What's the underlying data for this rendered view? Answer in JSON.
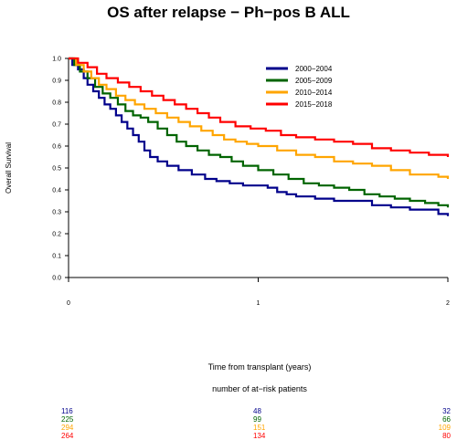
{
  "chart_data": {
    "type": "line",
    "title": "OS after relapse − Ph−pos B ALL",
    "xlabel": "Time from transplant (years)",
    "ylabel": "Overall Survival",
    "xlim": [
      0,
      2
    ],
    "ylim": [
      0,
      1
    ],
    "x_ticks": [
      "0",
      "1",
      "2"
    ],
    "y_ticks": [
      "0.0",
      "0.1",
      "0.2",
      "0.3",
      "0.4",
      "0.5",
      "0.6",
      "0.7",
      "0.8",
      "0.9",
      "1.0"
    ],
    "legend_position": "top-right",
    "series": [
      {
        "name": "2000−2004",
        "color": "#00008B",
        "points": [
          [
            0,
            1.0
          ],
          [
            0.02,
            0.97
          ],
          [
            0.05,
            0.95
          ],
          [
            0.08,
            0.91
          ],
          [
            0.1,
            0.88
          ],
          [
            0.13,
            0.85
          ],
          [
            0.16,
            0.82
          ],
          [
            0.19,
            0.79
          ],
          [
            0.22,
            0.77
          ],
          [
            0.25,
            0.74
          ],
          [
            0.28,
            0.71
          ],
          [
            0.31,
            0.68
          ],
          [
            0.34,
            0.65
          ],
          [
            0.37,
            0.62
          ],
          [
            0.4,
            0.58
          ],
          [
            0.43,
            0.55
          ],
          [
            0.47,
            0.53
          ],
          [
            0.52,
            0.51
          ],
          [
            0.58,
            0.49
          ],
          [
            0.65,
            0.47
          ],
          [
            0.72,
            0.45
          ],
          [
            0.78,
            0.44
          ],
          [
            0.85,
            0.43
          ],
          [
            0.92,
            0.42
          ],
          [
            1.0,
            0.42
          ],
          [
            1.05,
            0.41
          ],
          [
            1.1,
            0.39
          ],
          [
            1.15,
            0.38
          ],
          [
            1.2,
            0.37
          ],
          [
            1.3,
            0.36
          ],
          [
            1.4,
            0.35
          ],
          [
            1.5,
            0.35
          ],
          [
            1.6,
            0.33
          ],
          [
            1.7,
            0.32
          ],
          [
            1.8,
            0.31
          ],
          [
            1.9,
            0.31
          ],
          [
            1.95,
            0.29
          ],
          [
            2.0,
            0.28
          ]
        ]
      },
      {
        "name": "2005−2009",
        "color": "#006400",
        "points": [
          [
            0,
            1.0
          ],
          [
            0.03,
            0.97
          ],
          [
            0.06,
            0.94
          ],
          [
            0.1,
            0.91
          ],
          [
            0.14,
            0.87
          ],
          [
            0.18,
            0.84
          ],
          [
            0.22,
            0.82
          ],
          [
            0.26,
            0.79
          ],
          [
            0.3,
            0.76
          ],
          [
            0.34,
            0.74
          ],
          [
            0.38,
            0.73
          ],
          [
            0.42,
            0.71
          ],
          [
            0.47,
            0.68
          ],
          [
            0.52,
            0.65
          ],
          [
            0.57,
            0.62
          ],
          [
            0.62,
            0.6
          ],
          [
            0.68,
            0.58
          ],
          [
            0.74,
            0.56
          ],
          [
            0.8,
            0.55
          ],
          [
            0.86,
            0.53
          ],
          [
            0.92,
            0.51
          ],
          [
            1.0,
            0.49
          ],
          [
            1.08,
            0.47
          ],
          [
            1.16,
            0.45
          ],
          [
            1.24,
            0.43
          ],
          [
            1.32,
            0.42
          ],
          [
            1.4,
            0.41
          ],
          [
            1.48,
            0.4
          ],
          [
            1.56,
            0.38
          ],
          [
            1.64,
            0.37
          ],
          [
            1.72,
            0.36
          ],
          [
            1.8,
            0.35
          ],
          [
            1.88,
            0.34
          ],
          [
            1.95,
            0.33
          ],
          [
            2.0,
            0.32
          ]
        ]
      },
      {
        "name": "2010−2014",
        "color": "#FFA500",
        "points": [
          [
            0,
            1.0
          ],
          [
            0.04,
            0.97
          ],
          [
            0.08,
            0.94
          ],
          [
            0.12,
            0.91
          ],
          [
            0.16,
            0.88
          ],
          [
            0.2,
            0.86
          ],
          [
            0.25,
            0.83
          ],
          [
            0.3,
            0.81
          ],
          [
            0.35,
            0.79
          ],
          [
            0.4,
            0.77
          ],
          [
            0.46,
            0.75
          ],
          [
            0.52,
            0.73
          ],
          [
            0.58,
            0.71
          ],
          [
            0.64,
            0.69
          ],
          [
            0.7,
            0.67
          ],
          [
            0.76,
            0.65
          ],
          [
            0.82,
            0.63
          ],
          [
            0.88,
            0.62
          ],
          [
            0.94,
            0.61
          ],
          [
            1.0,
            0.6
          ],
          [
            1.1,
            0.58
          ],
          [
            1.2,
            0.56
          ],
          [
            1.3,
            0.55
          ],
          [
            1.4,
            0.53
          ],
          [
            1.5,
            0.52
          ],
          [
            1.6,
            0.51
          ],
          [
            1.7,
            0.49
          ],
          [
            1.8,
            0.47
          ],
          [
            1.9,
            0.47
          ],
          [
            1.95,
            0.46
          ],
          [
            2.0,
            0.45
          ]
        ]
      },
      {
        "name": "2015−2018",
        "color": "#FF0000",
        "points": [
          [
            0,
            1.0
          ],
          [
            0.05,
            0.98
          ],
          [
            0.1,
            0.96
          ],
          [
            0.15,
            0.93
          ],
          [
            0.2,
            0.91
          ],
          [
            0.26,
            0.89
          ],
          [
            0.32,
            0.87
          ],
          [
            0.38,
            0.85
          ],
          [
            0.44,
            0.83
          ],
          [
            0.5,
            0.81
          ],
          [
            0.56,
            0.79
          ],
          [
            0.62,
            0.77
          ],
          [
            0.68,
            0.75
          ],
          [
            0.74,
            0.73
          ],
          [
            0.8,
            0.71
          ],
          [
            0.88,
            0.69
          ],
          [
            0.96,
            0.68
          ],
          [
            1.04,
            0.67
          ],
          [
            1.12,
            0.65
          ],
          [
            1.2,
            0.64
          ],
          [
            1.3,
            0.63
          ],
          [
            1.4,
            0.62
          ],
          [
            1.5,
            0.61
          ],
          [
            1.6,
            0.59
          ],
          [
            1.7,
            0.58
          ],
          [
            1.8,
            0.57
          ],
          [
            1.9,
            0.56
          ],
          [
            1.96,
            0.56
          ],
          [
            2.0,
            0.55
          ]
        ]
      }
    ]
  },
  "at_risk": {
    "title": "number of at−risk patients",
    "rows": [
      {
        "color": "#00008B",
        "values": [
          "116",
          "48",
          "32"
        ]
      },
      {
        "color": "#006400",
        "values": [
          "225",
          "99",
          "66"
        ]
      },
      {
        "color": "#FFA500",
        "values": [
          "294",
          "151",
          "109"
        ]
      },
      {
        "color": "#FF0000",
        "values": [
          "264",
          "134",
          "80"
        ]
      }
    ]
  }
}
